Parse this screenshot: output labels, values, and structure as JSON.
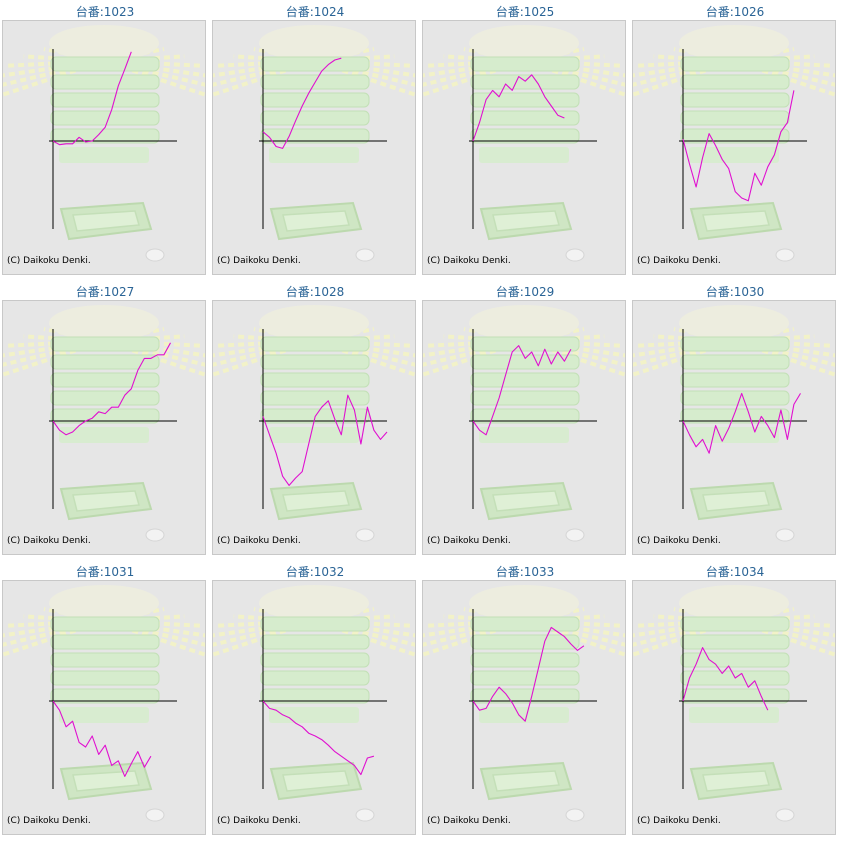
{
  "colors": {
    "line": "#e010d0",
    "axis": "#000000",
    "title": "#2a6496",
    "panel_bg": "#e6e6e6"
  },
  "chart_data": [
    {
      "type": "line",
      "title": "台番:1023",
      "credit": "(C) Daikoku Denki.",
      "x": [
        0,
        10,
        20,
        30,
        40,
        50,
        60,
        70,
        80,
        90,
        100,
        110,
        120
      ],
      "y": [
        0,
        -4,
        -3,
        -3,
        4,
        -1,
        0,
        7,
        15,
        34,
        60,
        78,
        97
      ]
    },
    {
      "type": "line",
      "title": "台番:1024",
      "credit": "(C) Daikoku Denki.",
      "x": [
        0,
        10,
        20,
        30,
        40,
        50,
        60,
        70,
        80,
        90,
        100,
        110,
        120
      ],
      "y": [
        10,
        4,
        -6,
        -8,
        5,
        22,
        38,
        52,
        64,
        76,
        83,
        88,
        90
      ]
    },
    {
      "type": "line",
      "title": "台番:1025",
      "credit": "(C) Daikoku Denki.",
      "x": [
        0,
        10,
        20,
        30,
        40,
        50,
        60,
        70,
        80,
        90,
        100,
        110,
        120,
        130,
        140
      ],
      "y": [
        0,
        20,
        45,
        55,
        48,
        62,
        55,
        70,
        65,
        72,
        62,
        48,
        38,
        28,
        25
      ]
    },
    {
      "type": "line",
      "title": "台番:1026",
      "credit": "(C) Daikoku Denki.",
      "x": [
        0,
        10,
        20,
        30,
        40,
        50,
        60,
        70,
        80,
        90,
        100,
        110,
        120,
        130,
        140,
        150,
        160,
        170
      ],
      "y": [
        2,
        -25,
        -50,
        -18,
        8,
        -5,
        -20,
        -30,
        -55,
        -62,
        -65,
        -35,
        -48,
        -28,
        -15,
        10,
        20,
        55
      ]
    },
    {
      "type": "line",
      "title": "台番:1027",
      "credit": "(C) Daikoku Denki.",
      "x": [
        0,
        10,
        20,
        30,
        40,
        50,
        60,
        70,
        80,
        90,
        100,
        110,
        120,
        130,
        140,
        150,
        160,
        170,
        180
      ],
      "y": [
        0,
        -10,
        -15,
        -12,
        -5,
        0,
        3,
        10,
        8,
        15,
        15,
        28,
        35,
        55,
        68,
        68,
        72,
        72,
        85
      ]
    },
    {
      "type": "line",
      "title": "台番:1028",
      "credit": "(C) Daikoku Denki.",
      "x": [
        0,
        10,
        20,
        30,
        40,
        50,
        60,
        70,
        80,
        90,
        100,
        110,
        120,
        130,
        140,
        150,
        160,
        170,
        180,
        190
      ],
      "y": [
        5,
        -15,
        -35,
        -60,
        -70,
        -62,
        -55,
        -25,
        5,
        15,
        22,
        2,
        -15,
        28,
        12,
        -25,
        15,
        -10,
        -20,
        -12
      ]
    },
    {
      "type": "line",
      "title": "台番:1029",
      "credit": "(C) Daikoku Denki.",
      "x": [
        0,
        10,
        20,
        30,
        40,
        50,
        60,
        70,
        80,
        90,
        100,
        110,
        120,
        130,
        140,
        150
      ],
      "y": [
        0,
        -10,
        -15,
        5,
        25,
        50,
        75,
        82,
        68,
        75,
        60,
        78,
        62,
        75,
        65,
        78
      ]
    },
    {
      "type": "line",
      "title": "台番:1030",
      "credit": "(C) Daikoku Denki.",
      "x": [
        0,
        10,
        20,
        30,
        40,
        50,
        60,
        70,
        80,
        90,
        100,
        110,
        120,
        130,
        140,
        150,
        160,
        170,
        180
      ],
      "y": [
        0,
        -15,
        -28,
        -20,
        -35,
        -5,
        -22,
        -8,
        10,
        30,
        10,
        -12,
        5,
        -5,
        -18,
        12,
        -20,
        18,
        30
      ]
    },
    {
      "type": "line",
      "title": "台番:1031",
      "credit": "(C) Daikoku Denki.",
      "x": [
        0,
        10,
        20,
        30,
        40,
        50,
        60,
        70,
        80,
        90,
        100,
        110,
        120,
        130,
        140,
        150
      ],
      "y": [
        0,
        -10,
        -28,
        -22,
        -45,
        -50,
        -38,
        -58,
        -48,
        -70,
        -65,
        -82,
        -68,
        -55,
        -72,
        -60
      ]
    },
    {
      "type": "line",
      "title": "台番:1032",
      "credit": "(C) Daikoku Denki.",
      "x": [
        0,
        10,
        20,
        30,
        40,
        50,
        60,
        70,
        80,
        90,
        100,
        110,
        120,
        130,
        140,
        150,
        160,
        170
      ],
      "y": [
        0,
        -8,
        -10,
        -15,
        -18,
        -24,
        -28,
        -35,
        -38,
        -42,
        -48,
        -55,
        -60,
        -65,
        -70,
        -80,
        -62,
        -60
      ]
    },
    {
      "type": "line",
      "title": "台番:1033",
      "credit": "(C) Daikoku Denki.",
      "x": [
        0,
        10,
        20,
        30,
        40,
        50,
        60,
        70,
        80,
        90,
        100,
        110,
        120,
        130,
        140,
        150,
        160,
        170
      ],
      "y": [
        0,
        -10,
        -8,
        5,
        15,
        8,
        -2,
        -15,
        -22,
        5,
        35,
        65,
        80,
        75,
        70,
        62,
        55,
        60
      ]
    },
    {
      "type": "line",
      "title": "台番:1034",
      "credit": "(C) Daikoku Denki.",
      "x": [
        0,
        10,
        20,
        30,
        40,
        50,
        60,
        70,
        80,
        90,
        100,
        110,
        120,
        130
      ],
      "y": [
        0,
        25,
        40,
        58,
        45,
        40,
        30,
        38,
        25,
        30,
        15,
        22,
        5,
        -10
      ]
    }
  ]
}
